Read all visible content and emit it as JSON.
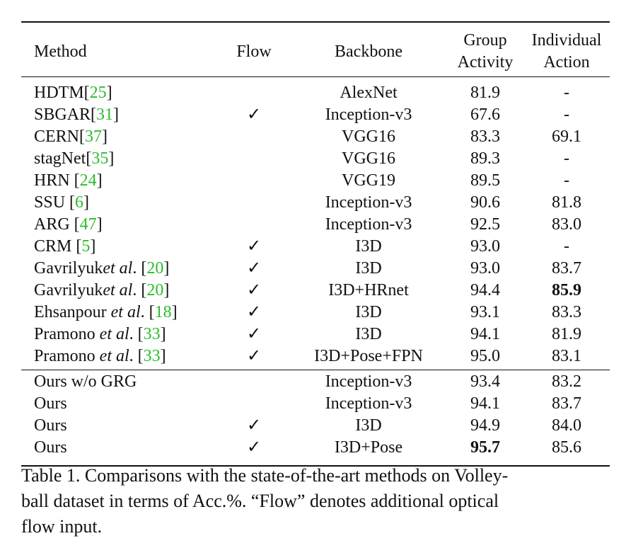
{
  "headers": {
    "method": "Method",
    "flow": "Flow",
    "backbone": "Backbone",
    "group_line1": "Group",
    "group_line2": "Activity",
    "individual_line1": "Individual",
    "individual_line2": "Action"
  },
  "rows_top": [
    {
      "name": "HDTM",
      "ital": "",
      "post": "",
      "cite": "25",
      "flow": "",
      "backbone": "AlexNet",
      "group": "81.9",
      "individual": "-"
    },
    {
      "name": "SBGAR",
      "ital": "",
      "post": "",
      "cite": "31",
      "flow": "✓",
      "backbone": "Inception-v3",
      "group": "67.6",
      "individual": "-"
    },
    {
      "name": "CERN",
      "ital": "",
      "post": "",
      "cite": "37",
      "flow": "",
      "backbone": "VGG16",
      "group": "83.3",
      "individual": "69.1"
    },
    {
      "name": "stagNet",
      "ital": "",
      "post": "",
      "cite": "35",
      "flow": "",
      "backbone": "VGG16",
      "group": "89.3",
      "individual": "-"
    },
    {
      "name": "HRN ",
      "ital": "",
      "post": "",
      "cite": "24",
      "flow": "",
      "backbone": "VGG19",
      "group": "89.5",
      "individual": "-"
    },
    {
      "name": "SSU ",
      "ital": "",
      "post": "",
      "cite": "6",
      "flow": "",
      "backbone": "Inception-v3",
      "group": "90.6",
      "individual": "81.8"
    },
    {
      "name": "ARG ",
      "ital": "",
      "post": "",
      "cite": "47",
      "flow": "",
      "backbone": "Inception-v3",
      "group": "92.5",
      "individual": "83.0"
    },
    {
      "name": "CRM ",
      "ital": "",
      "post": "",
      "cite": "5",
      "flow": "✓",
      "backbone": "I3D",
      "group": "93.0",
      "individual": "-"
    },
    {
      "name": "Gavrilyuk",
      "ital": "et al",
      "post": ". ",
      "cite": "20",
      "flow": "✓",
      "backbone": "I3D",
      "group": "93.0",
      "individual": "83.7"
    },
    {
      "name": "Gavrilyuk",
      "ital": "et al",
      "post": ". ",
      "cite": "20",
      "flow": "✓",
      "backbone": "I3D+HRnet",
      "group": "94.4",
      "individual": "85.9",
      "bold_individual": true
    },
    {
      "name": "Ehsanpour ",
      "ital": "et al",
      "post": ". ",
      "cite": "18",
      "flow": "✓",
      "backbone": "I3D",
      "group": "93.1",
      "individual": "83.3"
    },
    {
      "name": "Pramono ",
      "ital": "et al",
      "post": ". ",
      "cite": "33",
      "flow": "✓",
      "backbone": "I3D",
      "group": "94.1",
      "individual": "81.9"
    },
    {
      "name": "Pramono ",
      "ital": "et al",
      "post": ". ",
      "cite": "33",
      "flow": "✓",
      "backbone": "I3D+Pose+FPN",
      "group": "95.0",
      "individual": "83.1"
    }
  ],
  "rows_ours": [
    {
      "name": "Ours w/o GRG",
      "flow": "",
      "backbone": "Inception-v3",
      "group": "93.4",
      "individual": "83.2"
    },
    {
      "name": "Ours",
      "flow": "",
      "backbone": "Inception-v3",
      "group": "94.1",
      "individual": "83.7"
    },
    {
      "name": "Ours",
      "flow": "✓",
      "backbone": "I3D",
      "group": "94.9",
      "individual": "84.0"
    },
    {
      "name": "Ours",
      "flow": "✓",
      "backbone": "I3D+Pose",
      "group": "95.7",
      "individual": "85.6",
      "bold_group": true
    }
  ],
  "caption": "Table 1. Comparisons with the state-of-the-art methods on Volleyball dataset in terms of Acc.%. “Flow” denotes additional optical flow input.",
  "caption_lines": [
    "Table 1. Comparisons with the state-of-the-art methods on Volley-",
    "ball dataset in terms of Acc.%. “Flow” denotes additional optical",
    "flow input."
  ],
  "colors": {
    "citation": "#2bbd2b",
    "text": "#111111"
  }
}
